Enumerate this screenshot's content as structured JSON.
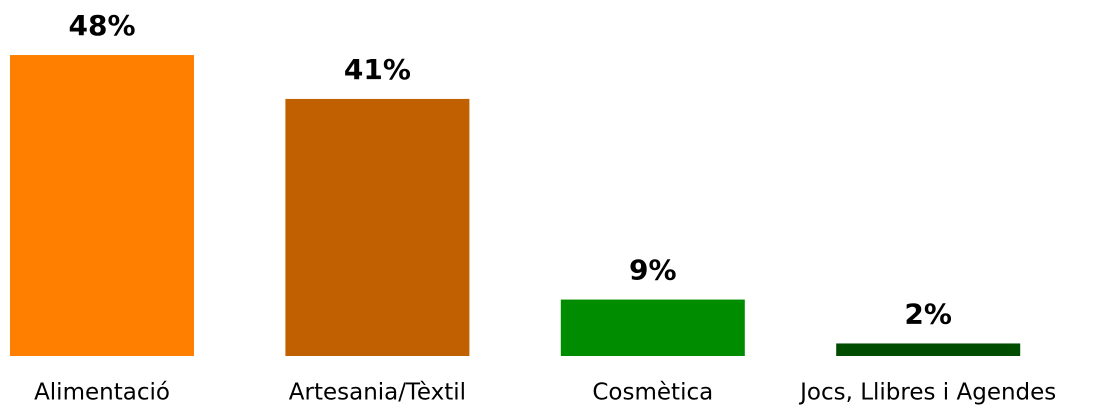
{
  "chart_data": {
    "type": "bar",
    "categories": [
      "Alimentació",
      "Artesania/Tèxtil",
      "Cosmètica",
      "Jocs, Llibres i Agendes"
    ],
    "values": [
      48,
      41,
      9,
      2
    ],
    "value_labels": [
      "48%",
      "41%",
      "9%",
      "2%"
    ],
    "colors": [
      "#ff8000",
      "#c06000",
      "#008c00",
      "#004c00"
    ]
  }
}
